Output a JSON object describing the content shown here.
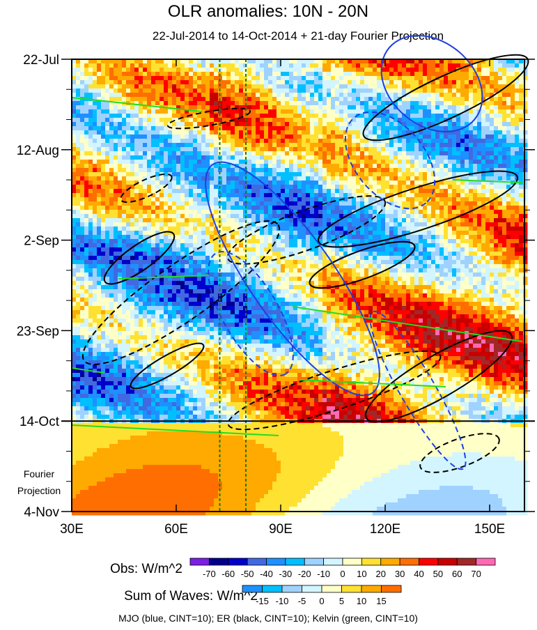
{
  "chart_data": {
    "type": "heatmap",
    "title": "OLR anomalies: 10N - 20N",
    "subtitle": "22-Jul-2014 to 14-Oct-2014 + 21-day Fourier Projection",
    "x_ticks": [
      "30E",
      "60E",
      "90E",
      "120E",
      "150E"
    ],
    "x_tick_values": [
      30,
      60,
      90,
      120,
      150
    ],
    "xlim": [
      30,
      160
    ],
    "y_ticks": [
      "22-Jul",
      "12-Aug",
      "2-Sep",
      "23-Sep",
      "14-Oct",
      "4-Nov"
    ],
    "y_tick_days": [
      0,
      21,
      42,
      63,
      84,
      105
    ],
    "projection_label": [
      "Fourier",
      "Projection"
    ],
    "obs_colorbar": {
      "label": "Obs: W/m^2",
      "levels": [
        "-70",
        "-60",
        "-50",
        "-40",
        "-30",
        "-20",
        "-10",
        "0",
        "10",
        "20",
        "30",
        "40",
        "50",
        "60",
        "70"
      ],
      "colors": [
        "#7b1fe6",
        "#00008b",
        "#0000cd",
        "#4169e1",
        "#1e90ff",
        "#00bfff",
        "#a0d2ff",
        "#d2f5ff",
        "#ffffc8",
        "#ffe132",
        "#ffaa00",
        "#ff6e00",
        "#ff0000",
        "#c80000",
        "#a02828",
        "#ff69b4"
      ]
    },
    "waves_colorbar": {
      "label": "Sum of Waves: W/m^2",
      "levels": [
        "-15",
        "-10",
        "-5",
        "0",
        "5",
        "10",
        "15"
      ],
      "colors": [
        "#1e90ff",
        "#00bfff",
        "#a0d2ff",
        "#d2f5ff",
        "#ffffc8",
        "#ffe132",
        "#ffaa00",
        "#ff6e00"
      ]
    },
    "contour_legend": "MJO (blue, CINT=10); ER (black, CINT=10); Kelvin (green, CINT=10)",
    "contour_colors": {
      "mjo": "#1f3fe0",
      "er": "#000000",
      "kelvin": "#22dd22"
    },
    "reference_longitudes": [
      72.5,
      80
    ]
  }
}
